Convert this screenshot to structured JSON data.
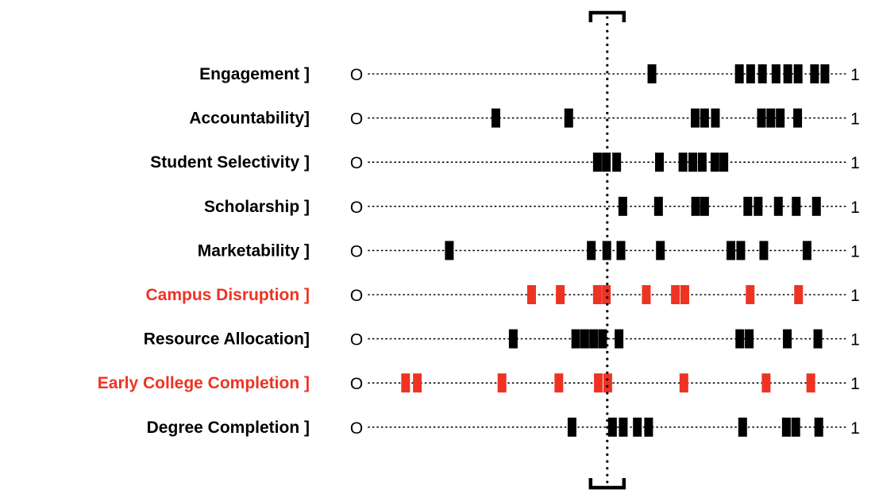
{
  "chart_data": {
    "type": "scatter",
    "x_range": [
      0,
      1
    ],
    "min_label": "O",
    "max_label": "1",
    "colors": {
      "default": "#000000",
      "highlight": "#ee3322"
    },
    "reference_marker": {
      "x": 0.498
    },
    "rows": [
      {
        "label": "Engagement ]",
        "highlight": false,
        "values": [
          0.593,
          0.779,
          0.803,
          0.828,
          0.857,
          0.882,
          0.904,
          0.939,
          0.961
        ]
      },
      {
        "label": "Accountability]",
        "highlight": false,
        "values": [
          0.261,
          0.416,
          0.685,
          0.705,
          0.728,
          0.826,
          0.846,
          0.866,
          0.903
        ]
      },
      {
        "label": "Student Selectivity ]",
        "highlight": false,
        "values": [
          0.477,
          0.496,
          0.518,
          0.609,
          0.659,
          0.68,
          0.7,
          0.727,
          0.746
        ]
      },
      {
        "label": "Scholarship ]",
        "highlight": false,
        "values": [
          0.531,
          0.607,
          0.686,
          0.705,
          0.797,
          0.819,
          0.862,
          0.9,
          0.943
        ]
      },
      {
        "label": "Marketability ]",
        "highlight": false,
        "values": [
          0.162,
          0.464,
          0.497,
          0.527,
          0.611,
          0.761,
          0.782,
          0.831,
          0.923
        ]
      },
      {
        "label": "Campus Disruption ]",
        "highlight": true,
        "values": [
          0.337,
          0.398,
          0.477,
          0.496,
          0.581,
          0.643,
          0.663,
          0.802,
          0.905
        ]
      },
      {
        "label": "Resource Allocation]",
        "highlight": false,
        "values": [
          0.298,
          0.431,
          0.45,
          0.469,
          0.488,
          0.523,
          0.78,
          0.8,
          0.881,
          0.946
        ]
      },
      {
        "label": "Early College Completion ]",
        "highlight": true,
        "values": [
          0.069,
          0.094,
          0.274,
          0.395,
          0.479,
          0.499,
          0.661,
          0.836,
          0.931
        ]
      },
      {
        "label": "Degree Completion ]",
        "highlight": false,
        "values": [
          0.423,
          0.509,
          0.532,
          0.562,
          0.586,
          0.786,
          0.879,
          0.899,
          0.948
        ]
      }
    ]
  }
}
